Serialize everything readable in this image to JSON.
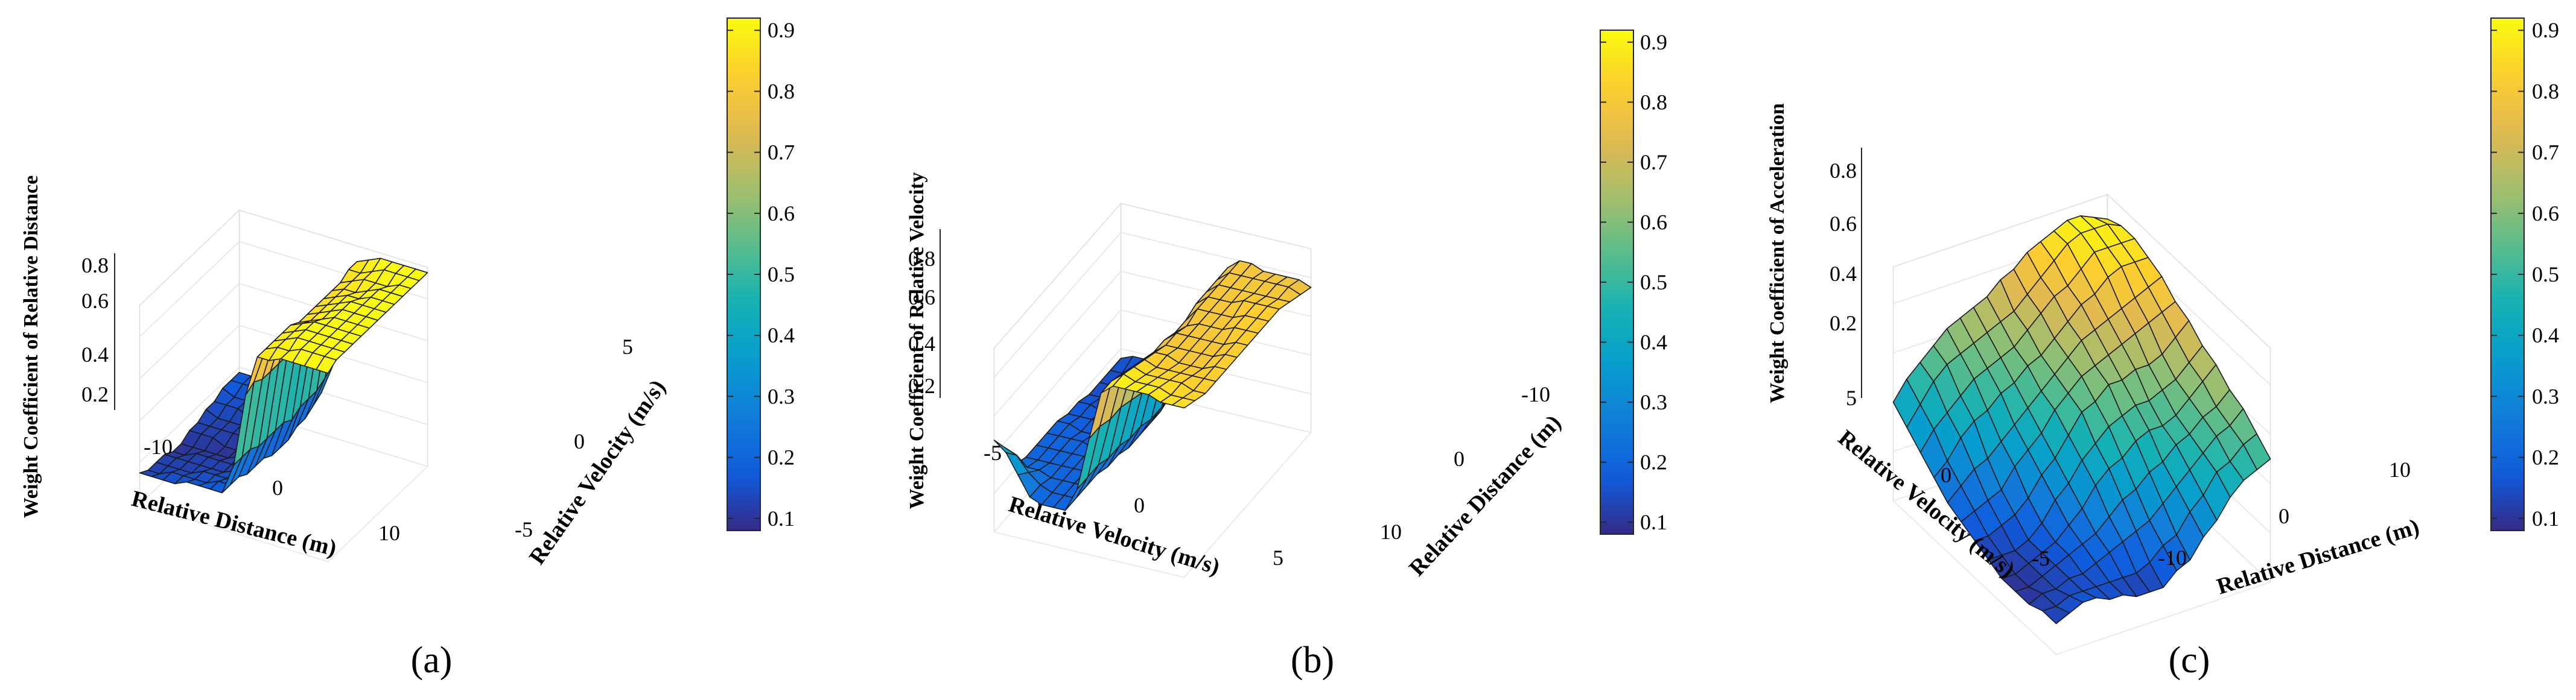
{
  "chart_data": [
    {
      "type": "surface",
      "panel_label": "(a)",
      "zlabel": "Weight Coefficient of Relative Distance",
      "xlabel": "Relative Distance (m)",
      "ylabel": "Relative Velocity (m/s)",
      "x_ticks": [
        "-10",
        "0",
        "10"
      ],
      "y_ticks": [
        "-5",
        "0",
        "5"
      ],
      "z_ticks": [
        "0.2",
        "0.4",
        "0.6",
        "0.8"
      ],
      "colorbar_ticks": [
        "0.1",
        "0.2",
        "0.3",
        "0.4",
        "0.5",
        "0.6",
        "0.7",
        "0.8",
        "0.9"
      ],
      "colorbar_range": [
        0.08,
        0.92
      ],
      "colormap": "parula",
      "x_range": [
        -15,
        15
      ],
      "y_range": [
        -7,
        7
      ],
      "z_range": [
        0,
        0.95
      ],
      "grid_nx": 16,
      "grid_ny": 12,
      "description": "High plateau (~0.85-0.9) at negative relative distance, sharp drop to ~0.1 near 0 m, low flat floor (~0.15-0.2) at positive distance"
    },
    {
      "type": "surface",
      "panel_label": "(b)",
      "zlabel": "Weight Coefficient of Relative Velocity",
      "xlabel": "Relative Velocity (m/s)",
      "ylabel": "Relative Distance (m)",
      "x_ticks": [
        "-5",
        "0",
        "5"
      ],
      "y_ticks": [
        "10",
        "0",
        "-10"
      ],
      "z_ticks": [
        "0.2",
        "0.4",
        "0.6",
        "0.8"
      ],
      "colorbar_ticks": [
        "0.1",
        "0.2",
        "0.3",
        "0.4",
        "0.5",
        "0.6",
        "0.7",
        "0.8",
        "0.9"
      ],
      "colorbar_range": [
        0.08,
        0.92
      ],
      "colormap": "parula",
      "x_range": [
        -7,
        7
      ],
      "y_range": [
        -15,
        15
      ],
      "z_range": [
        0,
        0.95
      ],
      "grid_nx": 16,
      "grid_ny": 12,
      "description": "Plateau (~0.7-0.9) at negative relative velocity, drop near 0 m/s, low floor (~0.15-0.25) at positive velocity with a rise at far corner"
    },
    {
      "type": "surface",
      "panel_label": "(c)",
      "zlabel": "Weight Coefficient of Acceleration",
      "xlabel": "Relative Distance (m)",
      "ylabel": "Relative Velocity (m/s)",
      "x_ticks": [
        "-10",
        "0",
        "10"
      ],
      "y_ticks": [
        "-5",
        "0",
        "5"
      ],
      "z_ticks": [
        "0.2",
        "0.4",
        "0.6",
        "0.8"
      ],
      "colorbar_ticks": [
        "0.1",
        "0.2",
        "0.3",
        "0.4",
        "0.5",
        "0.6",
        "0.7",
        "0.8",
        "0.9"
      ],
      "colorbar_range": [
        0.08,
        0.92
      ],
      "colormap": "parula",
      "x_range": [
        -15,
        15
      ],
      "y_range": [
        -7,
        7
      ],
      "z_range": [
        0,
        0.95
      ],
      "grid_nx": 16,
      "grid_ny": 12,
      "description": "Dome-like surface: low (~0.1) near front corner, rising to ~0.85-0.9 at the back region"
    }
  ]
}
